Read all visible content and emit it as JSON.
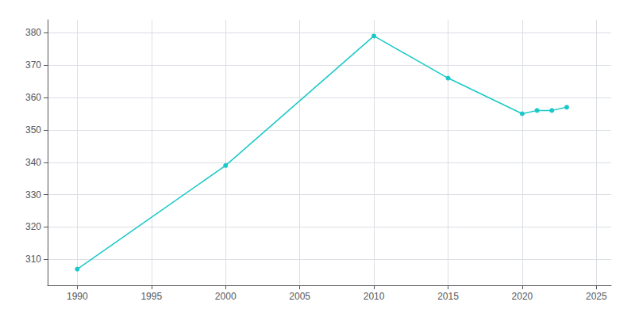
{
  "chart_data": {
    "type": "line",
    "x": [
      1990,
      2000,
      2010,
      2015,
      2020,
      2021,
      2022,
      2023
    ],
    "values": [
      307,
      339,
      379,
      366,
      355,
      356,
      356,
      357
    ],
    "color": "#1bc8c8",
    "marker": "o",
    "xlim": [
      1988,
      2026
    ],
    "xticks": [
      1990,
      1995,
      2000,
      2005,
      2010,
      2015,
      2020,
      2025
    ],
    "ylim": [
      302,
      384
    ],
    "yticks": [
      310,
      320,
      330,
      340,
      350,
      360,
      370,
      380
    ],
    "grid": true
  }
}
